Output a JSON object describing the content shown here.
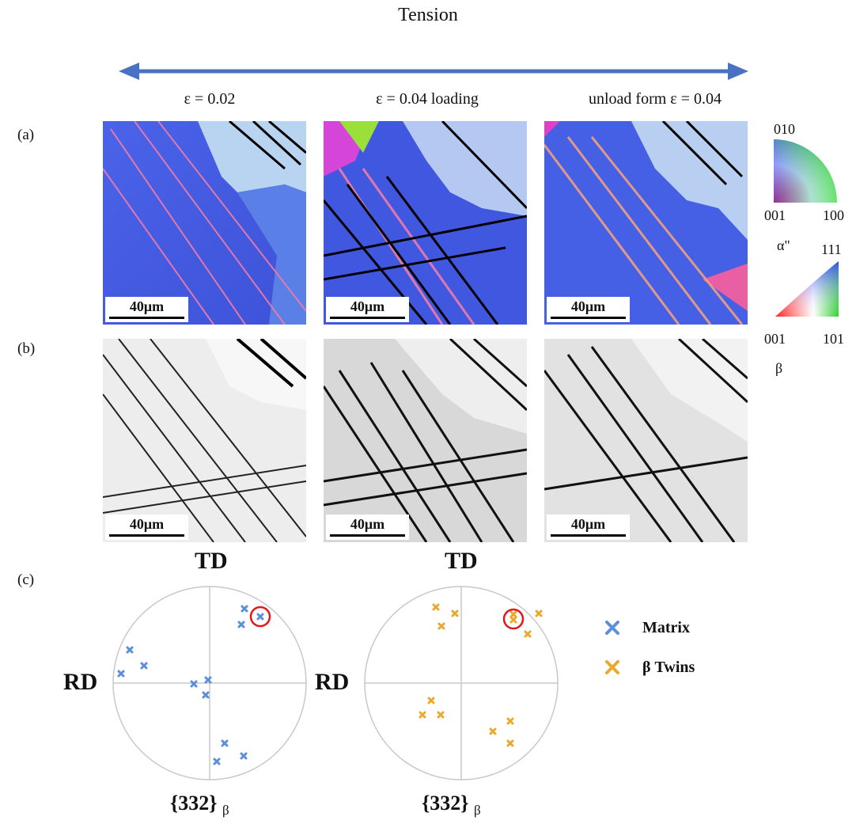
{
  "title": "Tension",
  "columns": [
    "ε = 0.02",
    "ε = 0.04 loading",
    "unload form ε = 0.04"
  ],
  "row_labels": {
    "a": "(a)",
    "b": "(b)",
    "c": "(c)"
  },
  "scale_bar": "40μm",
  "ipf_key": {
    "alpha": {
      "top": "010",
      "left": "001",
      "right": "100",
      "name": "α\""
    },
    "beta": {
      "top": "111",
      "left": "001",
      "right": "101",
      "name": "β"
    }
  },
  "pole_figures": {
    "td": "TD",
    "rd": "RD",
    "plane": "{332}",
    "plane_sub": "β"
  },
  "legend": [
    {
      "label": "Matrix",
      "color": "#5b8fd8"
    },
    {
      "label": "β Twins",
      "color": "#e8a92c"
    }
  ],
  "colors": {
    "arrow": "#4a72c4",
    "matrix": "#5b8fd8",
    "twins": "#e8a92c",
    "highlight": "#e01818"
  }
}
